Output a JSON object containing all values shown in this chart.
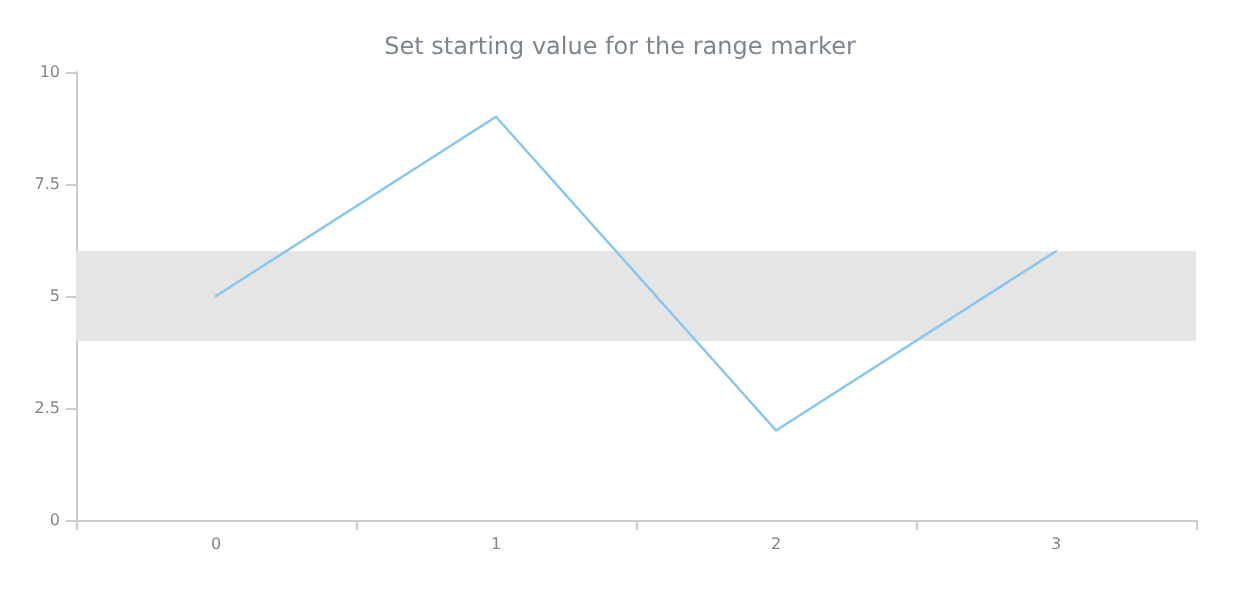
{
  "chart_data": {
    "type": "line",
    "title": "Set starting value for the range marker",
    "categories": [
      "0",
      "1",
      "2",
      "3"
    ],
    "series": [
      {
        "color": "#86c5f0",
        "values": [
          5,
          9,
          2,
          6
        ]
      }
    ],
    "ylim": [
      0,
      10
    ],
    "yticks": [
      0,
      2.5,
      5,
      7.5,
      10
    ],
    "grid": false,
    "marker": "none",
    "line_style": "solid",
    "bands": [
      {
        "axis": "y",
        "from": 4,
        "to": 6,
        "color": "#e5e5e5"
      }
    ]
  }
}
